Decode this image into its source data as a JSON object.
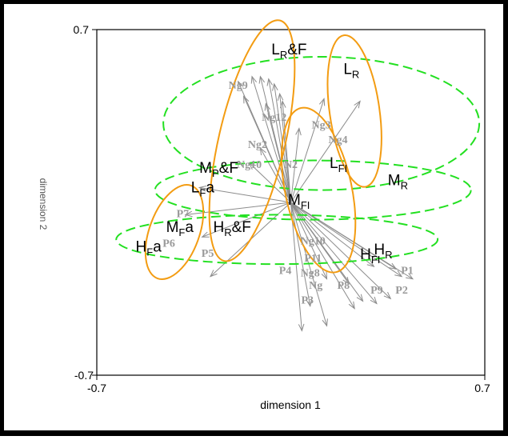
{
  "chart_data": {
    "type": "scatter",
    "title": "",
    "xlabel": "dimension 1",
    "ylabel": "dimension 2",
    "xlim": [
      -0.7,
      0.7
    ],
    "ylim": [
      -0.7,
      0.7
    ],
    "x_ticks": [
      "-0.7",
      "0.7"
    ],
    "y_ticks": [
      "0.7",
      "-0.7"
    ],
    "grid": false,
    "origin": {
      "x": 0.0,
      "y": 0.0
    },
    "class_labels": [
      {
        "base": "L",
        "sub": "R",
        "suffix": "&F",
        "x": -0.07,
        "y": 0.6
      },
      {
        "base": "L",
        "sub": "R",
        "suffix": "",
        "x": 0.19,
        "y": 0.52
      },
      {
        "base": "M",
        "sub": "P",
        "suffix": "&F",
        "x": -0.33,
        "y": 0.12
      },
      {
        "base": "L",
        "sub": "FI",
        "suffix": "",
        "x": 0.14,
        "y": 0.14
      },
      {
        "base": "M",
        "sub": "R",
        "suffix": "",
        "x": 0.35,
        "y": 0.07
      },
      {
        "base": "L",
        "sub": "F",
        "suffix": "a",
        "x": -0.36,
        "y": 0.04
      },
      {
        "base": "M",
        "sub": "FI",
        "suffix": "",
        "x": -0.01,
        "y": -0.01
      },
      {
        "base": "M",
        "sub": "F",
        "suffix": "a",
        "x": -0.45,
        "y": -0.12
      },
      {
        "base": "H",
        "sub": "R",
        "suffix": "&F",
        "x": -0.28,
        "y": -0.12
      },
      {
        "base": "H",
        "sub": "F",
        "suffix": "a",
        "x": -0.56,
        "y": -0.2
      },
      {
        "base": "H",
        "sub": "R",
        "suffix": "",
        "x": 0.3,
        "y": -0.21
      },
      {
        "base": "H",
        "sub": "FI",
        "suffix": "",
        "x": 0.25,
        "y": -0.23
      }
    ],
    "variables": [
      {
        "name": "Ng9",
        "x": -0.19,
        "y": 0.46
      },
      {
        "name": "Ng12",
        "x": -0.06,
        "y": 0.33
      },
      {
        "name": "Ng3",
        "x": 0.11,
        "y": 0.3
      },
      {
        "name": "Ng4",
        "x": 0.17,
        "y": 0.24
      },
      {
        "name": "Ng2",
        "x": -0.12,
        "y": 0.22
      },
      {
        "name": "Ng10",
        "x": -0.15,
        "y": 0.14
      },
      {
        "name": "N2",
        "x": 0.0,
        "y": 0.14
      },
      {
        "name": "P7",
        "x": -0.39,
        "y": -0.06
      },
      {
        "name": "P6",
        "x": -0.44,
        "y": -0.18
      },
      {
        "name": "P5",
        "x": -0.3,
        "y": -0.22
      },
      {
        "name": "Ng10",
        "x": 0.08,
        "y": -0.17
      },
      {
        "name": "P11",
        "x": 0.08,
        "y": -0.24
      },
      {
        "name": "P4",
        "x": -0.02,
        "y": -0.29
      },
      {
        "name": "Ng8",
        "x": 0.07,
        "y": -0.3
      },
      {
        "name": "Ng",
        "x": 0.09,
        "y": -0.35
      },
      {
        "name": "P8",
        "x": 0.19,
        "y": -0.35
      },
      {
        "name": "P1",
        "x": 0.42,
        "y": -0.29
      },
      {
        "name": "P9",
        "x": 0.31,
        "y": -0.37
      },
      {
        "name": "P2",
        "x": 0.4,
        "y": -0.37
      },
      {
        "name": "P3",
        "x": 0.06,
        "y": -0.41
      }
    ],
    "vectors": [
      [
        -0.19,
        0.49
      ],
      [
        -0.14,
        0.51
      ],
      [
        -0.11,
        0.51
      ],
      [
        -0.08,
        0.5
      ],
      [
        -0.06,
        0.48
      ],
      [
        -0.17,
        0.43
      ],
      [
        -0.04,
        0.44
      ],
      [
        -0.03,
        0.41
      ],
      [
        -0.09,
        0.4
      ],
      [
        0.12,
        0.42
      ],
      [
        0.25,
        0.41
      ],
      [
        0.03,
        0.3
      ],
      [
        -0.11,
        0.22
      ],
      [
        -0.15,
        0.16
      ],
      [
        -0.33,
        0.06
      ],
      [
        -0.38,
        -0.05
      ],
      [
        -0.32,
        -0.14
      ],
      [
        -0.29,
        -0.3
      ],
      [
        0.07,
        -0.42
      ],
      [
        0.04,
        -0.52
      ],
      [
        0.13,
        -0.5
      ],
      [
        0.23,
        -0.43
      ],
      [
        0.26,
        -0.4
      ],
      [
        0.31,
        -0.41
      ],
      [
        0.36,
        -0.39
      ],
      [
        0.4,
        -0.3
      ],
      [
        0.44,
        -0.31
      ],
      [
        0.13,
        -0.31
      ],
      [
        0.21,
        -0.33
      ],
      [
        0.3,
        -0.26
      ],
      [
        0.38,
        -0.27
      ]
    ],
    "ellipses": [
      {
        "cx": 0.11,
        "cy": 0.32,
        "rx": 0.57,
        "ry": 0.27,
        "rot": 0,
        "color": "#23e021",
        "dashed": true
      },
      {
        "cx": 0.08,
        "cy": 0.05,
        "rx": 0.57,
        "ry": 0.12,
        "rot": 0,
        "color": "#23e021",
        "dashed": true
      },
      {
        "cx": -0.05,
        "cy": -0.15,
        "rx": 0.58,
        "ry": 0.1,
        "rot": 0,
        "color": "#23e021",
        "dashed": true
      },
      {
        "cx": -0.14,
        "cy": 0.25,
        "rx": 0.12,
        "ry": 0.5,
        "rot": 13,
        "color": "#f39c12",
        "dashed": false
      },
      {
        "cx": 0.23,
        "cy": 0.37,
        "rx": 0.09,
        "ry": 0.31,
        "rot": -8,
        "color": "#f39c12",
        "dashed": false
      },
      {
        "cx": 0.1,
        "cy": 0.05,
        "rx": 0.12,
        "ry": 0.34,
        "rot": -12,
        "color": "#f39c12",
        "dashed": false
      },
      {
        "cx": -0.42,
        "cy": -0.12,
        "rx": 0.09,
        "ry": 0.2,
        "rot": 20,
        "color": "#f39c12",
        "dashed": false
      }
    ]
  }
}
